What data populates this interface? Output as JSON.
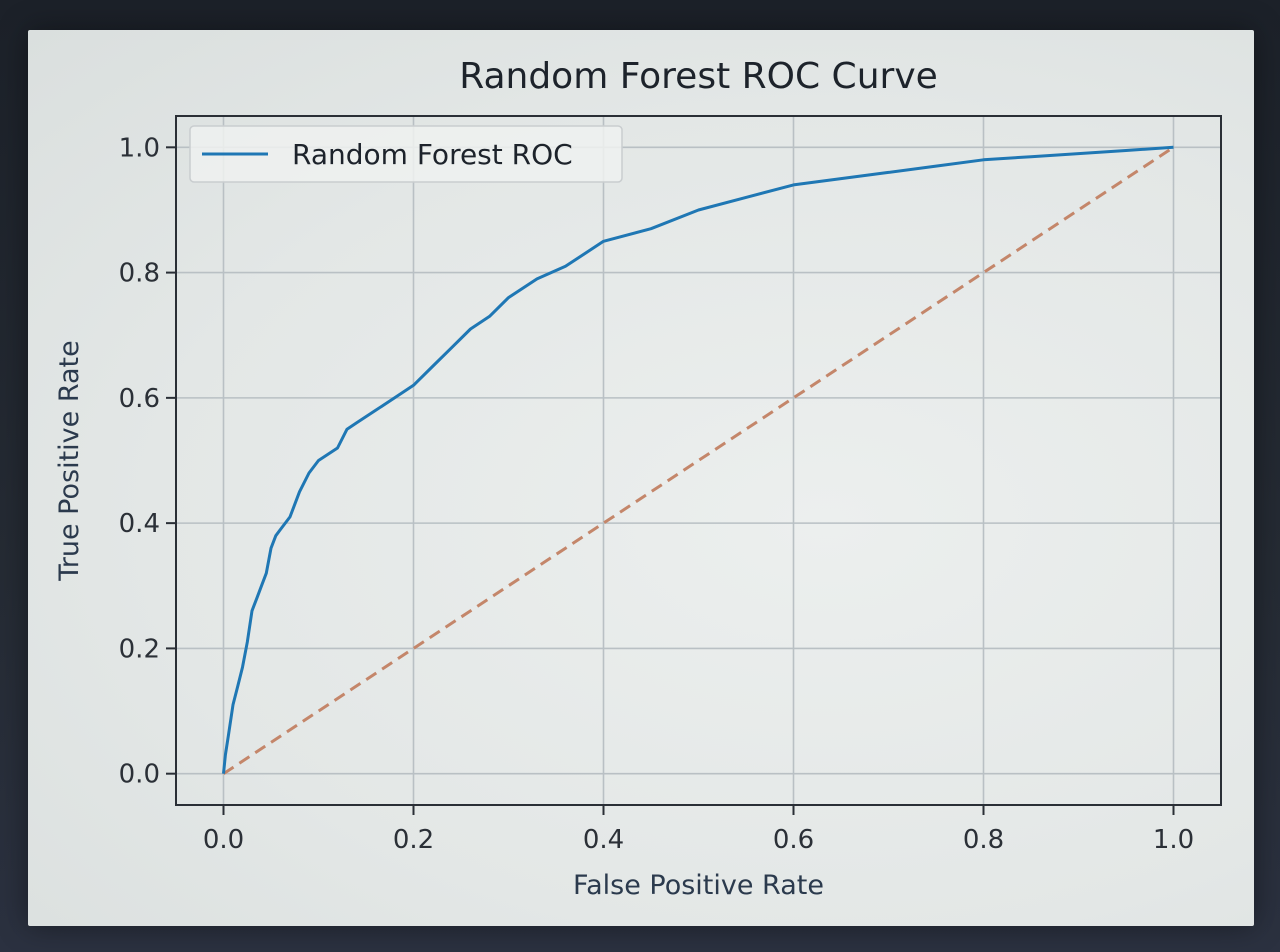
{
  "chart_data": {
    "type": "line",
    "title": "Random Forest ROC Curve",
    "xlabel": "False Positive Rate",
    "ylabel": "True Positive Rate",
    "xlim": [
      -0.05,
      1.05
    ],
    "ylim": [
      -0.05,
      1.05
    ],
    "grid": true,
    "legend_position": "upper-left",
    "x_ticks": [
      "0.0",
      "0.2",
      "0.4",
      "0.6",
      "0.8",
      "1.0"
    ],
    "y_ticks": [
      "0.0",
      "0.2",
      "0.4",
      "0.6",
      "0.8",
      "1.0"
    ],
    "series": [
      {
        "name": "Random Forest ROC",
        "color": "#1f77b4",
        "style": "solid",
        "x": [
          0.0,
          0.002,
          0.005,
          0.01,
          0.015,
          0.02,
          0.025,
          0.03,
          0.035,
          0.04,
          0.045,
          0.05,
          0.055,
          0.06,
          0.07,
          0.08,
          0.09,
          0.1,
          0.12,
          0.13,
          0.14,
          0.16,
          0.18,
          0.2,
          0.22,
          0.24,
          0.26,
          0.28,
          0.3,
          0.33,
          0.36,
          0.4,
          0.45,
          0.5,
          0.55,
          0.6,
          0.65,
          0.7,
          0.75,
          0.8,
          0.85,
          0.9,
          0.95,
          1.0
        ],
        "y": [
          0.0,
          0.03,
          0.06,
          0.11,
          0.14,
          0.17,
          0.21,
          0.26,
          0.28,
          0.3,
          0.32,
          0.36,
          0.38,
          0.39,
          0.41,
          0.45,
          0.48,
          0.5,
          0.52,
          0.55,
          0.56,
          0.58,
          0.6,
          0.62,
          0.65,
          0.68,
          0.71,
          0.73,
          0.76,
          0.79,
          0.81,
          0.85,
          0.87,
          0.9,
          0.92,
          0.94,
          0.95,
          0.96,
          0.97,
          0.98,
          0.985,
          0.99,
          0.995,
          1.0
        ]
      },
      {
        "name": "",
        "color": "#c4866a",
        "style": "dashed",
        "x": [
          0.0,
          1.0
        ],
        "y": [
          0.0,
          1.0
        ]
      }
    ]
  }
}
